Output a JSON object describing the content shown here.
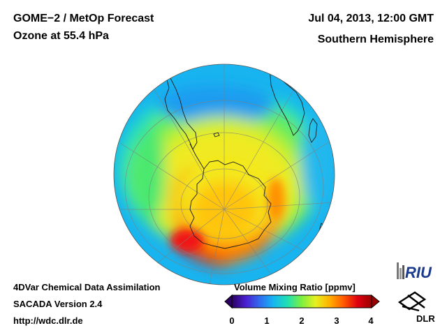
{
  "header": {
    "title_line1": "GOME−2 / MetOp Forecast",
    "title_line2": "Ozone at 55.4 hPa",
    "date": "Jul 04, 2013, 12:00 GMT",
    "hemisphere": "Southern Hemisphere"
  },
  "footer": {
    "line1": "4DVar Chemical Data Assimilation",
    "line2": "SACADA Version 2.4",
    "line3": "http://wdc.dlr.de"
  },
  "colorbar": {
    "title": "Volume Mixing Ratio [ppmv]",
    "ticks": [
      "0",
      "1",
      "2",
      "3",
      "4"
    ],
    "min": 0,
    "max": 4,
    "colors": [
      "#2a0060",
      "#4b1fd0",
      "#2f6cf0",
      "#16b8f0",
      "#21e0b0",
      "#7df040",
      "#e6f020",
      "#ffb000",
      "#ff5a00",
      "#e00010",
      "#9a0000"
    ]
  },
  "logos": {
    "riu": "RIU",
    "dlr": "DLR"
  }
}
